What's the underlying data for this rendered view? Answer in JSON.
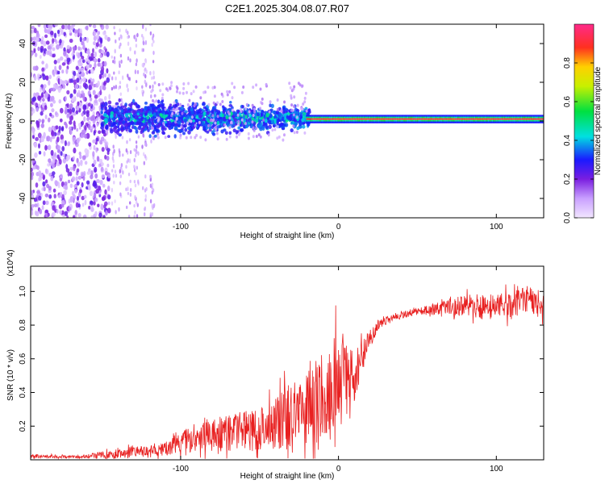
{
  "title": "C2E1.2025.304.08.07.R07",
  "colors": {
    "signal_line": "#e82020",
    "dots": "#7a1ee0",
    "axes": "#000000"
  },
  "chart_data": [
    {
      "type": "heatmap",
      "name": "spectrogram",
      "xlabel": "Height of straight line (km)",
      "ylabel": "Frequency (Hz)",
      "xlim": [
        -195,
        130
      ],
      "ylim": [
        -50,
        50
      ],
      "xticks": [
        -100,
        0,
        100
      ],
      "xtick_labels": [
        "-100",
        "0",
        "100"
      ],
      "yticks": [
        -40,
        -20,
        0,
        20,
        40
      ],
      "ytick_labels": [
        "-40",
        "-20",
        "0",
        "20",
        "40"
      ],
      "colorbar": {
        "label": "Normalized spectral amplitude",
        "range": [
          0,
          1
        ],
        "ticks": [
          0.0,
          0.2,
          0.4,
          0.6,
          0.8
        ],
        "tick_labels": [
          "0.0",
          "0.2",
          "0.4",
          "0.6",
          "0.8"
        ]
      },
      "regions": [
        {
          "x": [
            -195,
            -145
          ],
          "freq_spread": 50,
          "amplitude": [
            0.05,
            0.2
          ],
          "desc": "broadband noise"
        },
        {
          "x": [
            -145,
            -120
          ],
          "freq_spread": 50,
          "amplitude": [
            0.02,
            0.15
          ],
          "desc": "sparse noise"
        },
        {
          "x": [
            -150,
            -20
          ],
          "freq_spread": [
            10,
            5
          ],
          "amplitude": [
            0.2,
            0.4
          ],
          "desc": "signal emergence"
        },
        {
          "x": [
            -20,
            130
          ],
          "freq_spread": 1,
          "amplitude": [
            0.8,
            1.0
          ],
          "desc": "strong carrier near 0 Hz"
        }
      ]
    },
    {
      "type": "line",
      "name": "snr",
      "xlabel": "Height of straight line (km)",
      "ylabel": "SNR (10 * v/v)",
      "scale_label": "(x10^4)",
      "xlim": [
        -195,
        130
      ],
      "ylim": [
        0,
        1.15
      ],
      "xticks": [
        -100,
        0,
        100
      ],
      "xtick_labels": [
        "-100",
        "0",
        "100"
      ],
      "yticks": [
        0.2,
        0.4,
        0.6,
        0.8,
        1.0
      ],
      "ytick_labels": [
        "0.2",
        "0.4",
        "0.6",
        "0.8",
        "1.0"
      ],
      "series": [
        {
          "name": "SNR",
          "x": [
            -195,
            -160,
            -145,
            -130,
            -115,
            -105,
            -95,
            -85,
            -75,
            -65,
            -55,
            -45,
            -35,
            -25,
            -15,
            -8,
            -2,
            5,
            10,
            15,
            20,
            25,
            35,
            50,
            65,
            80,
            95,
            110,
            120,
            130
          ],
          "values": [
            0.02,
            0.02,
            0.03,
            0.05,
            0.05,
            0.08,
            0.12,
            0.15,
            0.15,
            0.17,
            0.17,
            0.2,
            0.25,
            0.3,
            0.35,
            0.4,
            0.5,
            0.55,
            0.5,
            0.6,
            0.72,
            0.8,
            0.85,
            0.88,
            0.9,
            0.92,
            0.9,
            0.92,
            0.95,
            0.92
          ],
          "noise": [
            0.01,
            0.01,
            0.03,
            0.03,
            0.03,
            0.05,
            0.08,
            0.1,
            0.1,
            0.12,
            0.12,
            0.14,
            0.18,
            0.22,
            0.25,
            0.25,
            0.28,
            0.2,
            0.15,
            0.1,
            0.06,
            0.03,
            0.02,
            0.02,
            0.04,
            0.07,
            0.08,
            0.08,
            0.08,
            0.08
          ]
        }
      ]
    }
  ]
}
